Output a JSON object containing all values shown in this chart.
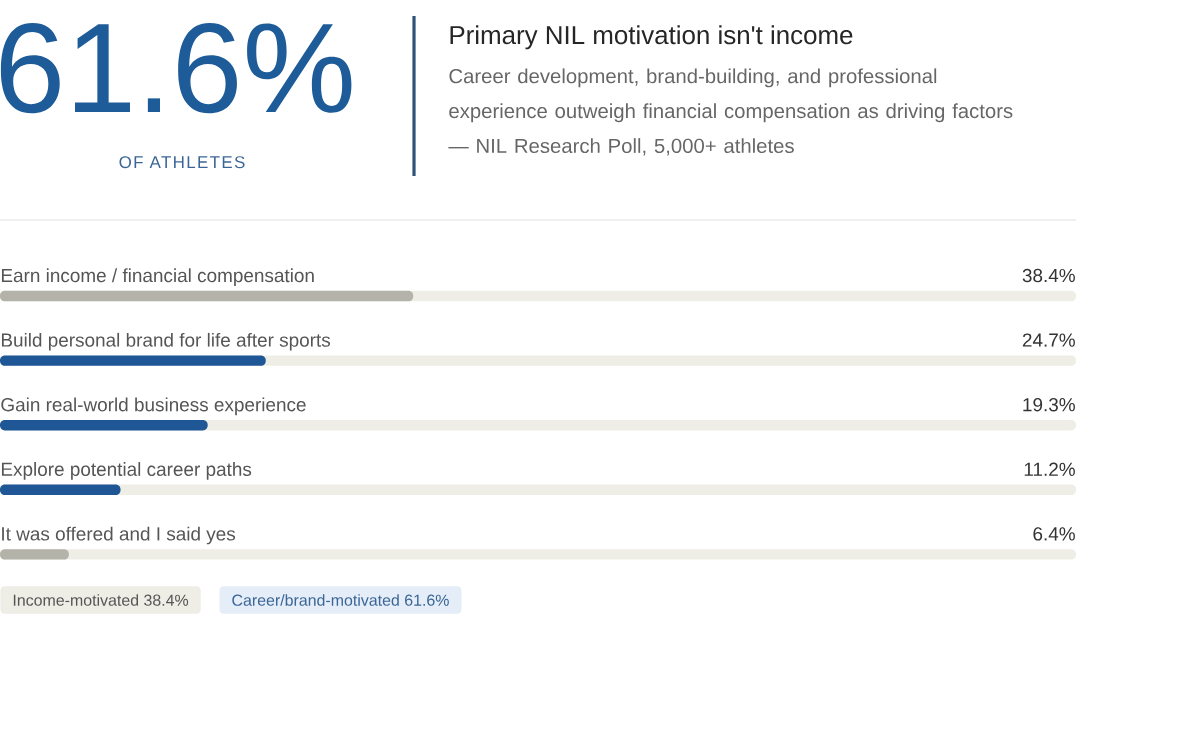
{
  "chart_data": {
    "type": "bar",
    "orientation": "horizontal",
    "title": "Primary NIL motivation isn't income",
    "subtitle": "Career development, brand-building, and professional experience outweigh financial compensation as driving factors — NIL Research Poll, 5,000+ athletes",
    "categories": [
      "Earn income / financial compensation",
      "Build personal brand for life after sports",
      "Gain real-world business experience",
      "Explore potential career paths",
      "It was offered and I said yes"
    ],
    "values": [
      38.4,
      24.7,
      19.3,
      11.2,
      6.4
    ],
    "colors": [
      "#b3b3aa",
      "#1e5696",
      "#1e5696",
      "#1e5696",
      "#b3b3aa"
    ],
    "value_labels": [
      "38.4%",
      "24.7%",
      "19.3%",
      "11.2%",
      "6.4%"
    ],
    "xlim": [
      0,
      100
    ],
    "annotations": [
      "61.6%",
      "OF ATHLETES",
      "Income-motivated 38.4%",
      "Career/brand-motivated 61.6%"
    ]
  }
}
